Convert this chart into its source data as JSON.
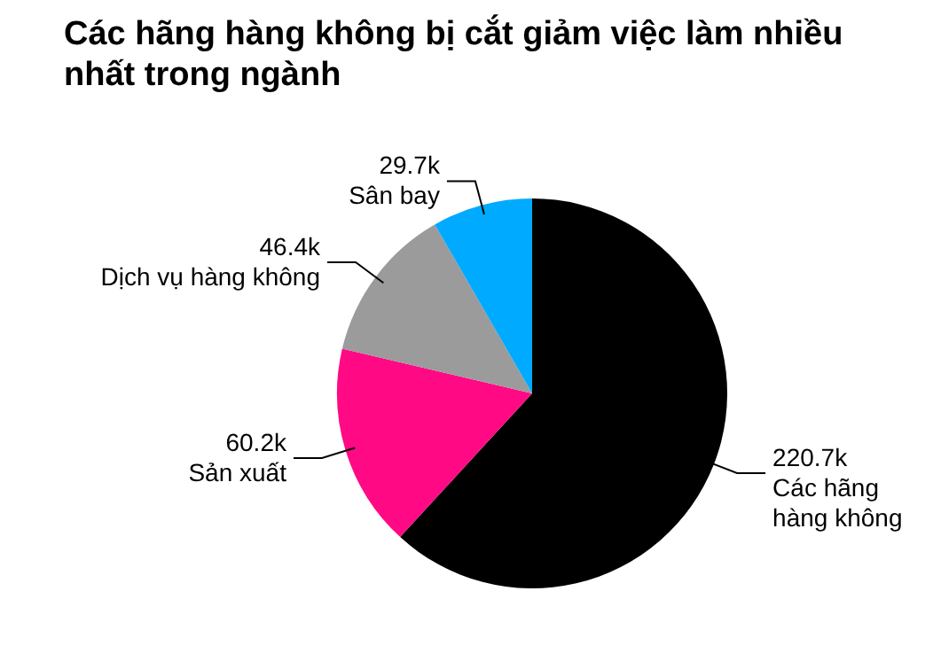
{
  "chart_data": {
    "type": "pie",
    "title": "Các hãng hàng không bị cắt giảm việc làm nhiều nhất trong ngành",
    "categories": [
      "Các hãng hàng không",
      "Sản xuất",
      "Dịch vụ hàng không",
      "Sân bay"
    ],
    "values": [
      220.7,
      60.2,
      46.4,
      29.7
    ],
    "colors": [
      "#000000",
      "#ff0a84",
      "#9b9b9b",
      "#00aaff"
    ],
    "value_labels": [
      "220.7k",
      "60.2k",
      "46.4k",
      "29.7k"
    ]
  }
}
